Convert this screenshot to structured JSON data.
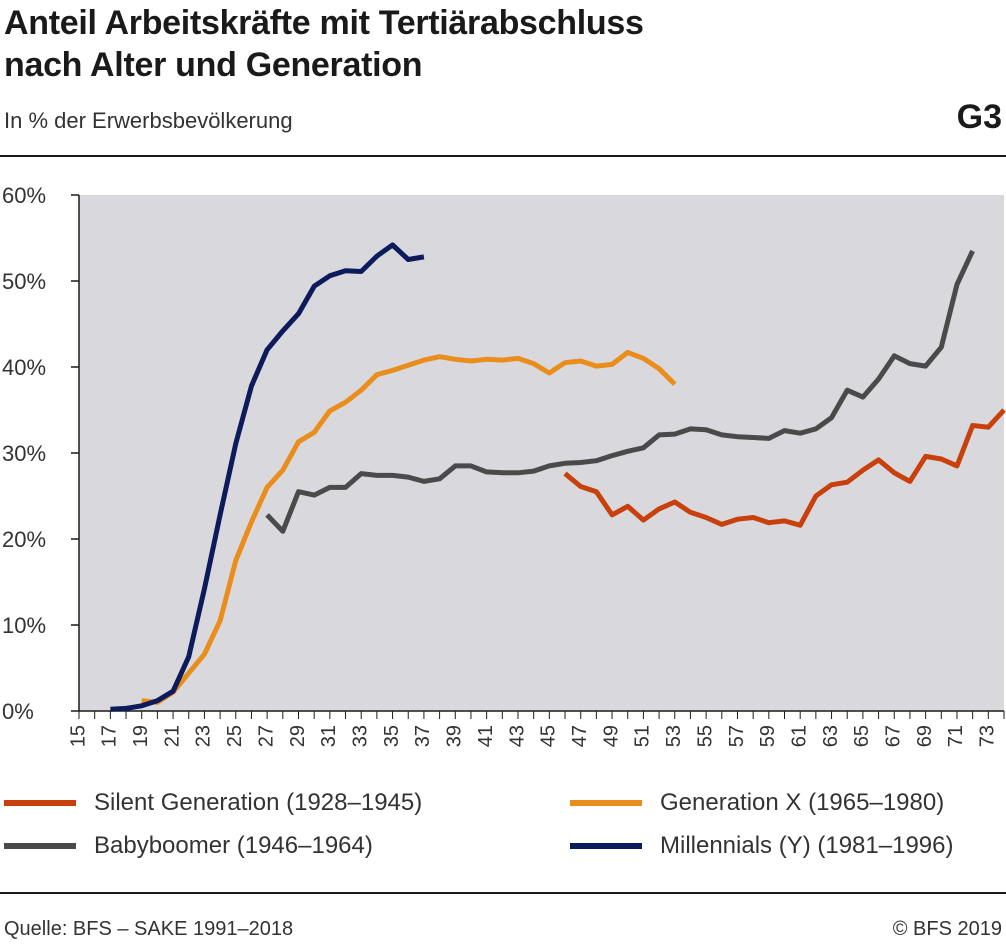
{
  "header": {
    "title_line1": "Anteil Arbeitskräfte mit Tertiärabschluss",
    "title_line2": "nach Alter und Generation",
    "subtitle": "In % der Erwerbsbevölkerung",
    "code": "G3"
  },
  "legend": [
    {
      "label": "Silent Generation (1928–1945)",
      "color": "#c8400c"
    },
    {
      "label": "Generation X (1965–1980)",
      "color": "#e98e1c"
    },
    {
      "label": "Babyboomer (1946–1964)",
      "color": "#4a4a4a"
    },
    {
      "label": "Millennials (Y) (1981–1996)",
      "color": "#0d1a5c"
    }
  ],
  "footer": {
    "source": "Quelle: BFS – SAKE 1991–2018",
    "copyright": "© BFS 2019"
  },
  "chart_data": {
    "type": "line",
    "title": "Anteil Arbeitskräfte mit Tertiärabschluss nach Alter und Generation",
    "ylabel": "",
    "xlabel": "",
    "xlim": [
      15,
      74
    ],
    "ylim": [
      0,
      60
    ],
    "y_ticks": [
      "0%",
      "10%",
      "20%",
      "30%",
      "40%",
      "50%",
      "60%"
    ],
    "x_tick_labels": [
      "15",
      "17",
      "19",
      "21",
      "23",
      "25",
      "27",
      "29",
      "31",
      "33",
      "35",
      "37",
      "39",
      "41",
      "43",
      "45",
      "47",
      "49",
      "51",
      "53",
      "55",
      "57",
      "59",
      "61",
      "63",
      "65",
      "67",
      "69",
      "71",
      "73"
    ],
    "grid": false,
    "background": "#d9d9dd",
    "series": [
      {
        "name": "Silent Generation (1928–1945)",
        "color": "#c8400c",
        "x": [
          46,
          47,
          48,
          49,
          50,
          51,
          52,
          53,
          54,
          55,
          56,
          57,
          58,
          59,
          60,
          61,
          62,
          63,
          64,
          65,
          66,
          67,
          68,
          69,
          70,
          71,
          72,
          73,
          74
        ],
        "y": [
          27.6,
          26.1,
          25.5,
          22.8,
          23.8,
          22.2,
          23.5,
          24.3,
          23.1,
          22.5,
          21.7,
          22.3,
          22.5,
          21.9,
          22.1,
          21.6,
          25.0,
          26.3,
          26.6,
          28.0,
          29.2,
          27.7,
          26.7,
          29.6,
          29.3,
          28.5,
          33.2,
          33.0,
          35.0
        ]
      },
      {
        "name": "Generation X (1965–1980)",
        "color": "#e98e1c",
        "x": [
          19,
          20,
          21,
          22,
          23,
          24,
          25,
          26,
          27,
          28,
          29,
          30,
          31,
          32,
          33,
          34,
          35,
          36,
          37,
          38,
          39,
          40,
          41,
          42,
          43,
          44,
          45,
          46,
          47,
          48,
          49,
          50,
          51,
          52,
          53
        ],
        "y": [
          1.2,
          1.0,
          2.2,
          4.4,
          6.6,
          10.5,
          17.5,
          22.0,
          26.0,
          28.0,
          31.3,
          32.4,
          34.9,
          35.9,
          37.3,
          39.1,
          39.6,
          40.2,
          40.8,
          41.2,
          40.9,
          40.7,
          40.9,
          40.8,
          41.0,
          40.4,
          39.3,
          40.5,
          40.7,
          40.1,
          40.3,
          41.7,
          41.0,
          39.8,
          38.0
        ]
      },
      {
        "name": "Babyboomer (1946–1964)",
        "color": "#4a4a4a",
        "x": [
          27,
          28,
          29,
          30,
          31,
          32,
          33,
          34,
          35,
          36,
          37,
          38,
          39,
          40,
          41,
          42,
          43,
          44,
          45,
          46,
          47,
          48,
          49,
          50,
          51,
          52,
          53,
          54,
          55,
          56,
          57,
          58,
          59,
          60,
          61,
          62,
          63,
          64,
          65,
          66,
          67,
          68,
          69,
          70,
          71,
          72
        ],
        "y": [
          22.8,
          20.9,
          25.5,
          25.1,
          26.0,
          26.0,
          27.6,
          27.4,
          27.4,
          27.2,
          26.7,
          27.0,
          28.5,
          28.5,
          27.8,
          27.7,
          27.7,
          27.9,
          28.5,
          28.8,
          28.9,
          29.1,
          29.7,
          30.2,
          30.6,
          32.1,
          32.2,
          32.8,
          32.7,
          32.1,
          31.9,
          31.8,
          31.7,
          32.6,
          32.3,
          32.8,
          34.1,
          37.3,
          36.5,
          38.6,
          41.3,
          40.4,
          40.1,
          42.3,
          49.6,
          53.5
        ]
      },
      {
        "name": "Millennials (Y) (1981–1996)",
        "color": "#0d1a5c",
        "x": [
          17,
          18,
          19,
          20,
          21,
          22,
          23,
          24,
          25,
          26,
          27,
          28,
          29,
          30,
          31,
          32,
          33,
          34,
          35,
          36,
          37
        ],
        "y": [
          0.2,
          0.3,
          0.6,
          1.2,
          2.3,
          6.3,
          14.2,
          22.8,
          31.1,
          37.8,
          42.0,
          44.2,
          46.2,
          49.4,
          50.6,
          51.2,
          51.1,
          52.9,
          54.2,
          52.5,
          52.8
        ]
      }
    ]
  }
}
